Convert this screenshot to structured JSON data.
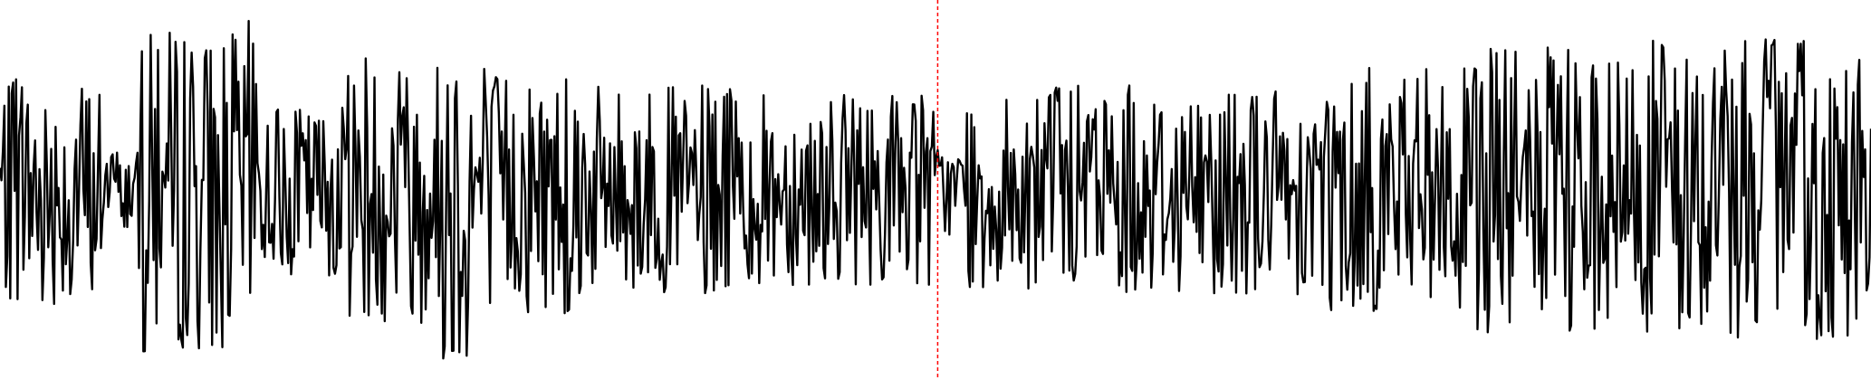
{
  "chart_data": {
    "type": "line",
    "title": "",
    "xlabel": "",
    "ylabel": "",
    "grid": false,
    "legend": "none",
    "ylim": [
      -1,
      1
    ],
    "x": {
      "start": 0,
      "step": 1,
      "count": 1280
    },
    "series": [
      {
        "color": "#000000",
        "style": "waveform",
        "segments": [
          {
            "x_range": [
              0,
              70
            ],
            "amplitude": 0.6
          },
          {
            "x_range": [
              70,
              95
            ],
            "amplitude": 0.2
          },
          {
            "x_range": [
              95,
              165
            ],
            "amplitude": 0.85
          },
          {
            "x_range": [
              165,
              178
            ],
            "amplitude": 0.9
          },
          {
            "x_range": [
              178,
              235
            ],
            "amplitude": 0.45
          },
          {
            "x_range": [
              235,
              300
            ],
            "amplitude": 0.7
          },
          {
            "x_range": [
              300,
              325
            ],
            "amplitude": 0.95
          },
          {
            "x_range": [
              325,
              400
            ],
            "amplitude": 0.65
          },
          {
            "x_range": [
              400,
              500
            ],
            "amplitude": 0.55
          },
          {
            "x_range": [
              500,
              640
            ],
            "amplitude": 0.5
          },
          {
            "x_range": [
              640,
              660
            ],
            "amplitude": 0.25
          },
          {
            "x_range": [
              660,
              900
            ],
            "amplitude": 0.55
          },
          {
            "x_range": [
              900,
              1010
            ],
            "amplitude": 0.65
          },
          {
            "x_range": [
              1010,
              1130
            ],
            "amplitude": 0.75
          },
          {
            "x_range": [
              1130,
              1280
            ],
            "amplitude": 0.8
          }
        ]
      }
    ],
    "markers": [
      {
        "type": "vline",
        "x": 641,
        "color": "#ff0000",
        "style": "dashed"
      }
    ]
  }
}
